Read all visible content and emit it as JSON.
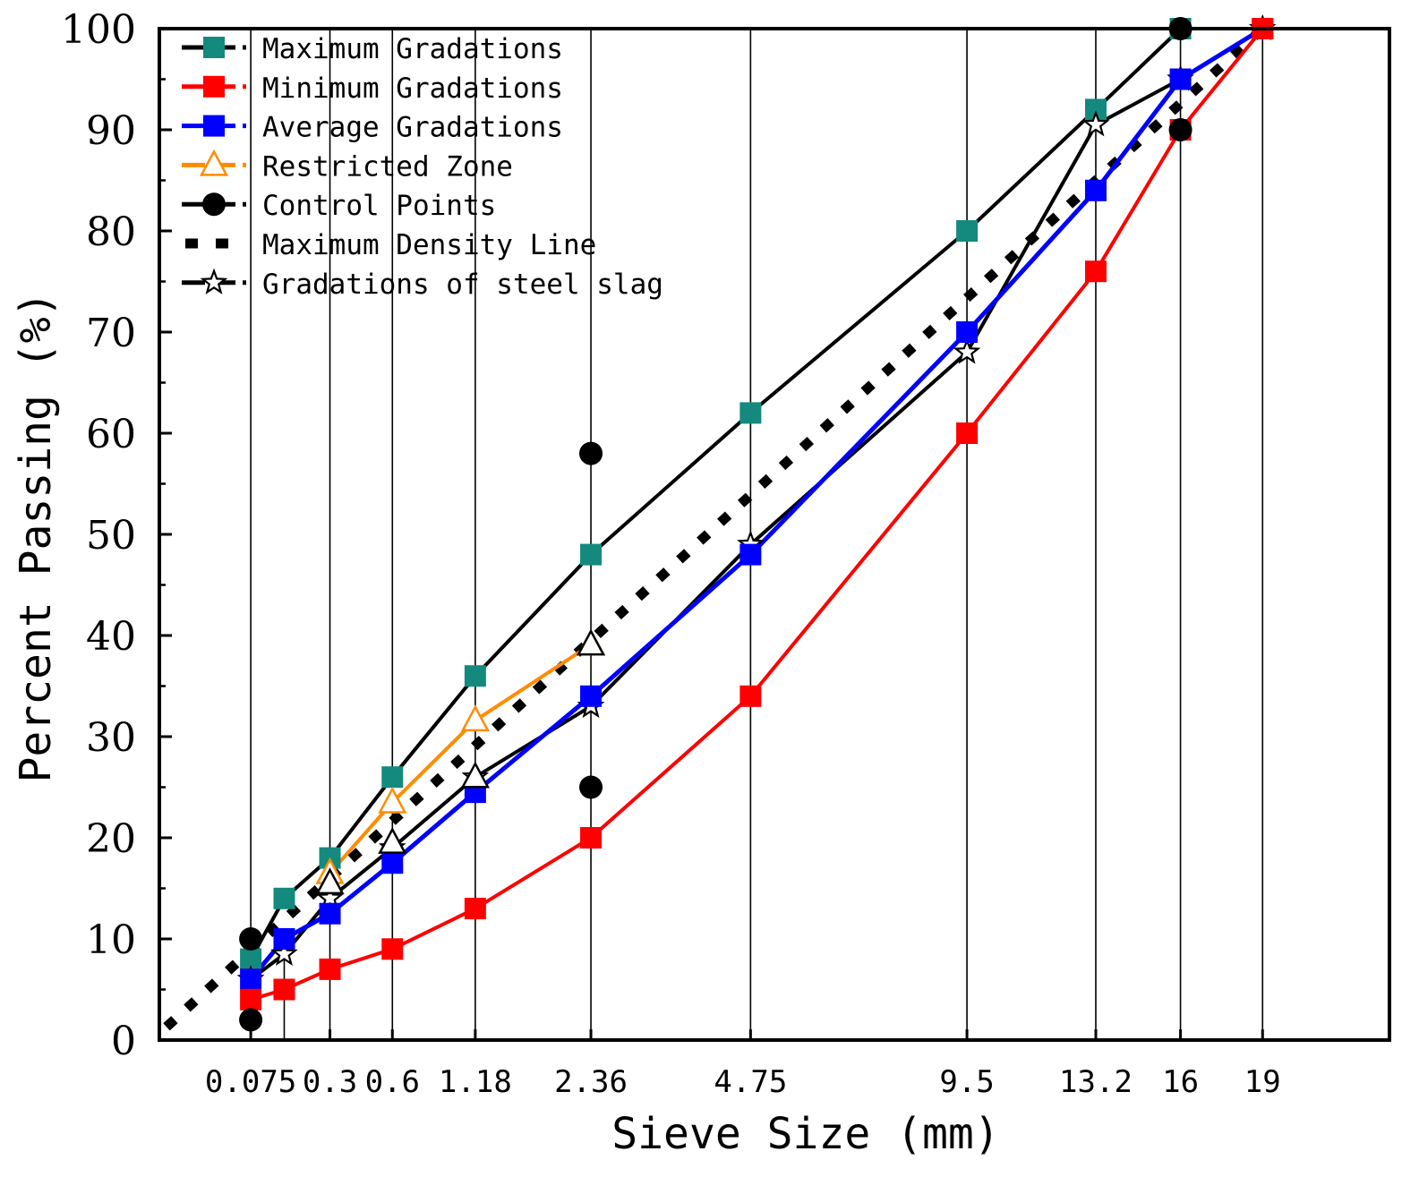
{
  "chart_data": {
    "type": "line",
    "title": "",
    "xlabel": "Sieve Size (mm)",
    "ylabel": "Percent Passing (%)",
    "x_scale": "power-0.45",
    "xlim": [
      0,
      24.2
    ],
    "ylim": [
      0,
      100
    ],
    "x_ticks": [
      0.075,
      0.3,
      0.6,
      1.18,
      2.36,
      4.75,
      9.5,
      13.2,
      16,
      19
    ],
    "x_tick_labels": [
      "0.075",
      "0.3",
      "0.6",
      "1.18",
      "2.36",
      "4.75",
      "9.5",
      "13.2",
      "16",
      "19"
    ],
    "y_ticks": [
      0,
      10,
      20,
      30,
      40,
      50,
      60,
      70,
      80,
      90,
      100
    ],
    "y_tick_labels": [
      "0",
      "10",
      "20",
      "30",
      "40",
      "50",
      "60",
      "70",
      "80",
      "90",
      "100"
    ],
    "legend_position": "top-left",
    "series": [
      {
        "name": "Maximum Gradations",
        "color": "#000000",
        "marker": "square",
        "marker_color": "#138a7d",
        "line_style": "solid",
        "x": [
          0.075,
          0.15,
          0.3,
          0.6,
          1.18,
          2.36,
          4.75,
          9.5,
          13.2,
          16
        ],
        "values": [
          8,
          14,
          18,
          26,
          36,
          48,
          62,
          80,
          92,
          100
        ]
      },
      {
        "name": "Minimum Gradations",
        "color": "#ff0000",
        "marker": "square",
        "marker_color": "#ff0000",
        "line_style": "solid",
        "x": [
          0.075,
          0.15,
          0.3,
          0.6,
          1.18,
          2.36,
          4.75,
          9.5,
          13.2,
          16,
          19
        ],
        "values": [
          4,
          5,
          7,
          9,
          13,
          20,
          34,
          60,
          76,
          90,
          100
        ]
      },
      {
        "name": "Average Gradations",
        "color": "#0000ff",
        "marker": "square",
        "marker_color": "#0000ff",
        "line_style": "solid",
        "x": [
          0.075,
          0.15,
          0.3,
          0.6,
          1.18,
          2.36,
          4.75,
          9.5,
          13.2,
          16,
          19
        ],
        "values": [
          6,
          10,
          12.5,
          17.5,
          24.5,
          34,
          48,
          70,
          84,
          95,
          100
        ]
      },
      {
        "name": "Restricted Zone",
        "color": "#ff8c00",
        "marker": "triangle-open",
        "marker_color": "#ff8c00",
        "line_style": "solid",
        "x": [
          0.3,
          0.6,
          1.18,
          2.36
        ],
        "values": [
          16.5,
          23.5,
          31.6,
          39.1
        ]
      },
      {
        "name": "Control Points",
        "color": "#000000",
        "marker": "circle",
        "marker_color": "#000000",
        "line_style": "none",
        "x": [
          0.075,
          0.075,
          2.36,
          2.36,
          16,
          16
        ],
        "values": [
          2,
          10,
          25,
          58,
          90,
          100
        ]
      },
      {
        "name": "Maximum Density Line",
        "color": "#000000",
        "marker": "none",
        "marker_color": "#000000",
        "line_style": "dotted",
        "x": [
          0,
          19
        ],
        "values": [
          0,
          100
        ]
      },
      {
        "name": "Gradations of steel slag",
        "color": "#000000",
        "marker": "star-open",
        "marker_color": "#000000",
        "line_style": "solid",
        "x": [
          0.075,
          0.15,
          0.3,
          0.6,
          1.18,
          2.36,
          4.75,
          9.5,
          13.2,
          16,
          19
        ],
        "values": [
          6,
          8.5,
          14,
          19,
          26,
          33,
          49,
          68,
          90.5,
          95,
          100
        ]
      }
    ],
    "restricted_zone_open_triangles": {
      "x": [
        0.3,
        0.6,
        1.18,
        2.36
      ],
      "values": [
        15.5,
        19.5,
        26,
        39.1
      ]
    }
  }
}
